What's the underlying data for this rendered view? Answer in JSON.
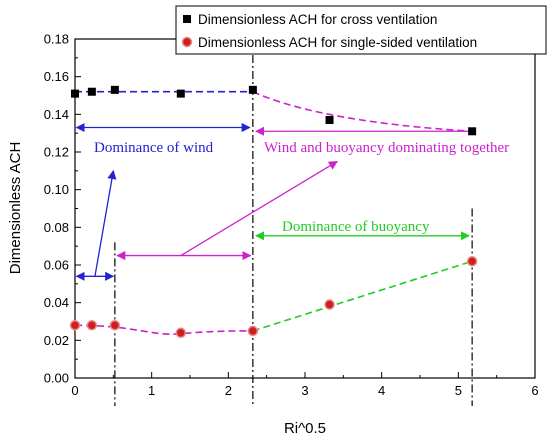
{
  "chart_data": {
    "type": "scatter",
    "xlabel": "Ri^0.5",
    "ylabel": "Dimensionless ACH",
    "xlim": [
      0,
      6
    ],
    "ylim": [
      0,
      0.18
    ],
    "x_ticks": [
      "0",
      "1",
      "2",
      "3",
      "4",
      "5",
      "6"
    ],
    "y_ticks": [
      "0.00",
      "0.02",
      "0.04",
      "0.06",
      "0.08",
      "0.10",
      "0.12",
      "0.14",
      "0.16",
      "0.18"
    ],
    "legend_position": "top-right",
    "series": [
      {
        "name": "Dimensionless ACH for cross ventilation",
        "marker": "square",
        "color": "#000000",
        "x": [
          0,
          0.22,
          0.52,
          1.38,
          2.32,
          3.32,
          5.18
        ],
        "y": [
          0.151,
          0.152,
          0.153,
          0.151,
          0.153,
          0.137,
          0.131
        ]
      },
      {
        "name": "Dimensionless ACH for single-sided ventilation",
        "marker": "circle",
        "color": "#cc1f1f",
        "x": [
          0,
          0.22,
          0.52,
          1.38,
          2.32,
          3.32,
          5.18
        ],
        "y": [
          0.028,
          0.028,
          0.028,
          0.024,
          0.025,
          0.039,
          0.062
        ]
      }
    ],
    "annotations": [
      {
        "text": "Dominance of wind",
        "color": "#2323d0"
      },
      {
        "text": "Wind and buoyancy dominating together",
        "color": "#cc22cc"
      },
      {
        "text": "Dominance of buoyancy",
        "color": "#22cc22"
      }
    ],
    "vertical_reference_lines_x": [
      0.52,
      2.32,
      5.18
    ],
    "colors": {
      "wind": "#2323d0",
      "together": "#cc22cc",
      "buoyancy": "#22cc22",
      "single_fit": "#cc22cc"
    }
  }
}
